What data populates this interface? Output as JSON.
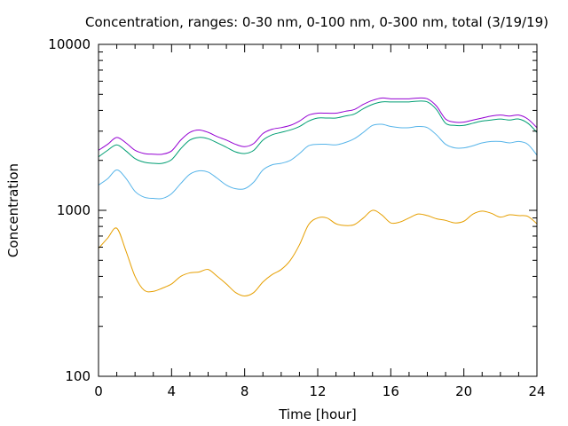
{
  "chart_data": {
    "type": "line",
    "title": "Concentration, ranges: 0-30 nm, 0-100 nm, 0-300 nm, total (3/19/19)",
    "xlabel": "Time [hour]",
    "ylabel": "Concentration",
    "xlim": [
      0,
      24
    ],
    "ylim": [
      100,
      10000
    ],
    "yscale": "log",
    "grid": false,
    "legend": "none",
    "x_ticks": [
      0,
      4,
      8,
      12,
      16,
      20,
      24
    ],
    "x_tick_labels": [
      "0",
      "4",
      "8",
      "12",
      "16",
      "20",
      "24"
    ],
    "y_ticks": [
      100,
      1000,
      10000
    ],
    "y_tick_labels": [
      "100",
      "1000",
      "10000"
    ],
    "x": [
      0,
      0.5,
      1,
      1.5,
      2,
      2.5,
      3,
      3.5,
      4,
      4.5,
      5,
      5.5,
      6,
      6.5,
      7,
      7.5,
      8,
      8.5,
      9,
      9.5,
      10,
      10.5,
      11,
      11.5,
      12,
      12.5,
      13,
      13.5,
      14,
      14.5,
      15,
      15.5,
      16,
      16.5,
      17,
      17.5,
      18,
      18.5,
      19,
      19.5,
      20,
      20.5,
      21,
      21.5,
      22,
      22.5,
      23,
      23.5,
      24
    ],
    "series": [
      {
        "color": "#e69f00",
        "values": [
          590,
          680,
          780,
          570,
          400,
          330,
          325,
          340,
          360,
          400,
          420,
          425,
          440,
          400,
          360,
          320,
          305,
          320,
          370,
          410,
          440,
          500,
          620,
          820,
          900,
          900,
          830,
          810,
          820,
          900,
          1000,
          940,
          840,
          850,
          900,
          950,
          930,
          890,
          870,
          840,
          860,
          950,
          990,
          960,
          910,
          940,
          930,
          920,
          830
        ]
      },
      {
        "color": "#56b4e9",
        "values": [
          1420,
          1550,
          1750,
          1560,
          1300,
          1200,
          1180,
          1180,
          1260,
          1450,
          1650,
          1730,
          1700,
          1560,
          1420,
          1350,
          1350,
          1480,
          1750,
          1880,
          1920,
          2000,
          2200,
          2450,
          2500,
          2500,
          2480,
          2560,
          2700,
          2950,
          3250,
          3300,
          3200,
          3150,
          3150,
          3200,
          3150,
          2850,
          2500,
          2380,
          2380,
          2450,
          2550,
          2600,
          2600,
          2550,
          2600,
          2500,
          2150
        ]
      },
      {
        "color": "#009e73",
        "values": [
          2100,
          2300,
          2480,
          2280,
          2050,
          1950,
          1920,
          1920,
          2020,
          2350,
          2650,
          2750,
          2700,
          2550,
          2400,
          2250,
          2200,
          2300,
          2650,
          2850,
          2950,
          3050,
          3200,
          3450,
          3600,
          3600,
          3600,
          3700,
          3800,
          4100,
          4350,
          4500,
          4500,
          4500,
          4500,
          4550,
          4500,
          4050,
          3350,
          3250,
          3250,
          3350,
          3450,
          3500,
          3550,
          3500,
          3550,
          3350,
          2950
        ]
      },
      {
        "color": "#9400d3",
        "values": [
          2300,
          2500,
          2750,
          2550,
          2300,
          2200,
          2180,
          2180,
          2280,
          2650,
          2950,
          3050,
          2950,
          2780,
          2650,
          2500,
          2420,
          2530,
          2900,
          3080,
          3150,
          3250,
          3450,
          3750,
          3850,
          3850,
          3850,
          3950,
          4050,
          4350,
          4600,
          4750,
          4700,
          4700,
          4700,
          4750,
          4700,
          4250,
          3550,
          3400,
          3400,
          3500,
          3600,
          3700,
          3750,
          3700,
          3750,
          3550,
          3150
        ]
      }
    ]
  }
}
